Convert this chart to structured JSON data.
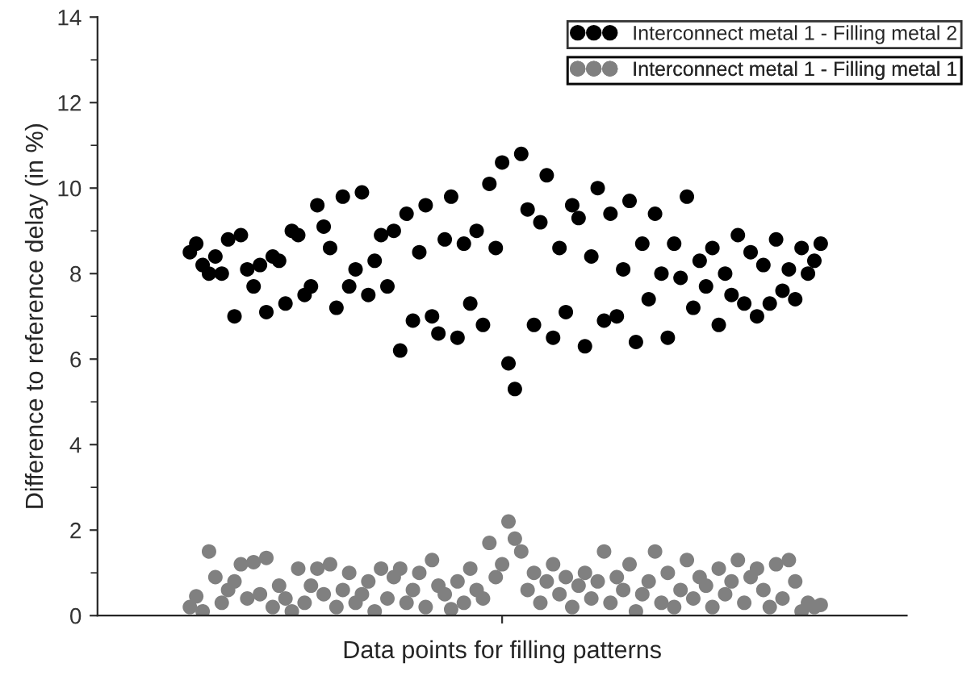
{
  "chart_data": {
    "type": "scatter",
    "xlabel": "Data points for filling patterns",
    "ylabel": "Difference to reference delay (in %)",
    "categories": [
      null,
      null,
      null,
      null,
      null,
      null,
      null,
      null,
      null,
      null,
      null,
      null,
      null,
      null,
      null,
      null,
      null,
      null,
      null,
      null,
      null,
      null,
      null,
      null,
      null,
      null,
      null,
      null,
      null,
      null,
      null,
      null,
      null,
      null,
      null,
      null,
      null,
      null,
      null,
      null,
      null,
      null,
      null,
      null,
      null,
      null,
      null,
      null,
      null,
      null,
      null,
      null,
      null,
      null,
      null,
      null,
      null,
      null,
      null,
      null,
      null,
      null,
      null,
      null,
      null,
      null,
      null,
      null,
      null,
      null,
      null,
      null,
      null,
      null,
      null,
      null,
      null,
      null,
      null,
      null,
      null,
      null,
      null,
      null,
      null,
      null,
      null,
      null,
      null,
      null,
      null,
      null,
      null,
      null,
      null,
      null,
      null,
      null,
      null,
      null,
      null,
      null,
      null,
      null,
      null,
      null,
      null,
      null,
      null,
      null,
      null,
      null,
      null,
      null,
      null,
      null,
      null,
      null,
      null,
      null,
      null,
      null,
      null,
      null,
      null,
      null,
      null
    ],
    "series": [
      {
        "name": "Interconnect metal 1 - Filling metal 2",
        "color": "#000000",
        "values": [
          null,
          null,
          null,
          null,
          null,
          null,
          null,
          null,
          null,
          null,
          null,
          null,
          null,
          null,
          8.5,
          8.7,
          8.2,
          8.0,
          8.4,
          8.0,
          8.8,
          7.0,
          8.9,
          8.1,
          7.7,
          8.2,
          7.1,
          8.4,
          8.3,
          7.3,
          9.0,
          8.9,
          7.5,
          7.7,
          9.6,
          9.1,
          8.6,
          7.2,
          9.8,
          7.7,
          8.1,
          9.9,
          7.5,
          8.3,
          8.9,
          7.7,
          9.0,
          6.2,
          9.4,
          6.9,
          8.5,
          9.6,
          7.0,
          6.6,
          8.8,
          9.8,
          6.5,
          8.7,
          7.3,
          9.0,
          6.8,
          10.1,
          8.6,
          10.6,
          5.9,
          5.3,
          10.8,
          9.5,
          6.8,
          9.2,
          10.3,
          6.5,
          8.6,
          7.1,
          9.6,
          9.3,
          6.3,
          8.4,
          10.0,
          6.9,
          9.4,
          7.0,
          8.1,
          9.7,
          6.4,
          8.7,
          7.4,
          9.4,
          8.0,
          6.5,
          8.7,
          7.9,
          9.8,
          7.2,
          8.3,
          7.7,
          8.6,
          6.8,
          8.0,
          7.5,
          8.9,
          7.3,
          8.5,
          7.0,
          8.2,
          7.3,
          8.8,
          7.6,
          8.1,
          7.4,
          8.6,
          8.0,
          8.3,
          8.7,
          null,
          null,
          null,
          null,
          null,
          null,
          null,
          null,
          null,
          null,
          null,
          null,
          null
        ]
      },
      {
        "name": "Interconnect metal 1 - Filling metal 1",
        "color": "#808080",
        "values": [
          null,
          null,
          null,
          null,
          null,
          null,
          null,
          null,
          null,
          null,
          null,
          null,
          null,
          null,
          0.2,
          0.45,
          0.1,
          1.5,
          0.9,
          0.3,
          0.6,
          0.8,
          1.2,
          0.4,
          1.25,
          0.5,
          1.35,
          0.2,
          0.7,
          0.4,
          0.1,
          1.1,
          0.3,
          0.7,
          1.1,
          0.5,
          1.2,
          0.2,
          0.6,
          1.0,
          0.3,
          0.5,
          0.8,
          0.1,
          1.1,
          0.4,
          0.9,
          1.1,
          0.3,
          0.6,
          1.0,
          0.2,
          1.3,
          0.7,
          0.5,
          0.15,
          0.8,
          0.3,
          1.1,
          0.6,
          0.4,
          1.7,
          0.9,
          1.2,
          2.2,
          1.8,
          1.5,
          0.6,
          1.0,
          0.3,
          0.8,
          1.2,
          0.5,
          0.9,
          0.2,
          0.7,
          1.0,
          0.4,
          0.8,
          1.5,
          0.3,
          0.9,
          0.6,
          1.2,
          0.1,
          0.5,
          0.8,
          1.5,
          0.3,
          1.0,
          0.2,
          0.6,
          1.3,
          0.4,
          0.9,
          0.7,
          0.2,
          1.1,
          0.5,
          0.8,
          1.3,
          0.3,
          0.9,
          1.1,
          0.6,
          0.2,
          1.2,
          0.4,
          1.3,
          0.8,
          0.1,
          0.3,
          0.2,
          0.25,
          null,
          null,
          null,
          null,
          null,
          null,
          null,
          null,
          null,
          null,
          null,
          null,
          null
        ]
      }
    ],
    "ylim": [
      0,
      14
    ],
    "yticks": [
      0,
      2,
      4,
      6,
      8,
      10,
      12,
      14
    ],
    "marker": "circle",
    "legend": "top right",
    "grid": false
  }
}
